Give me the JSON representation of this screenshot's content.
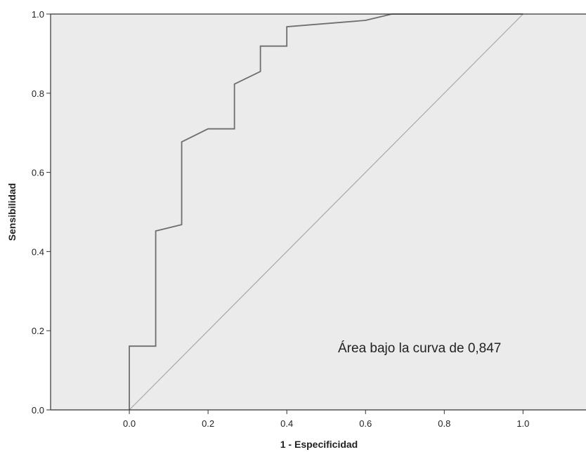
{
  "chart_data": {
    "type": "line",
    "title": "",
    "xlabel": "1 - Especificidad",
    "ylabel": "Sensibilidad",
    "xlim": [
      -0.2,
      1.16
    ],
    "ylim": [
      0.0,
      1.0
    ],
    "xticks": [
      0.0,
      0.2,
      0.4,
      0.6,
      0.8,
      1.0
    ],
    "yticks": [
      0.0,
      0.2,
      0.4,
      0.6,
      0.8,
      1.0
    ],
    "xtick_labels": [
      "0.0",
      "0.2",
      "0.4",
      "0.6",
      "0.8",
      "1.0"
    ],
    "ytick_labels": [
      "0.0",
      "0.2",
      "0.4",
      "0.6",
      "0.8",
      "1.0"
    ],
    "grid": false,
    "legend": "none",
    "background_color": "#ebebeb",
    "series": [
      {
        "kind": "roc-step",
        "color": "#6e6e6e",
        "x": [
          0.0,
          0.0,
          0.067,
          0.067,
          0.133,
          0.133,
          0.2,
          0.267,
          0.267,
          0.333,
          0.333,
          0.4,
          0.4,
          0.6,
          0.667,
          1.0
        ],
        "y": [
          0.0,
          0.161,
          0.161,
          0.452,
          0.468,
          0.677,
          0.71,
          0.71,
          0.823,
          0.855,
          0.919,
          0.919,
          0.968,
          0.984,
          1.0,
          1.0
        ]
      },
      {
        "kind": "reference-diagonal",
        "color": "#a8a8a8",
        "x": [
          0.0,
          1.0
        ],
        "y": [
          0.0,
          1.0
        ]
      }
    ],
    "annotations": [
      {
        "text": "Área bajo la curva de 0,847",
        "x": 0.53,
        "y": 0.145
      }
    ]
  }
}
